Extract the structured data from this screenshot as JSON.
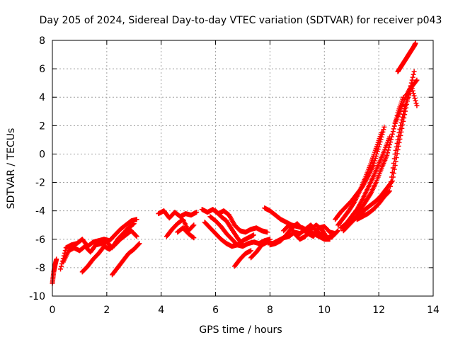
{
  "chart_data": {
    "type": "scatter",
    "title": "Day 205 of 2024, Sidereal Day-to-day VTEC variation (SDTVAR) for receiver p043",
    "xlabel": "GPS time / hours",
    "ylabel": "SDTVAR / TECUs",
    "xlim": [
      0,
      14
    ],
    "ylim": [
      -10,
      8
    ],
    "x_ticks": [
      0,
      2,
      4,
      6,
      8,
      10,
      12,
      14
    ],
    "y_ticks": [
      -10,
      -8,
      -6,
      -4,
      -2,
      0,
      2,
      4,
      6,
      8
    ],
    "grid": true,
    "marker": "plus",
    "point_color": "#ff0000",
    "series": [
      {
        "x": [
          0.0,
          0.05,
          0.1,
          0.15
        ],
        "y": [
          -9.1,
          -8.3,
          -7.8,
          -7.4
        ]
      },
      {
        "x": [
          0.3,
          0.5,
          0.7,
          0.9,
          1.1,
          1.3,
          1.5,
          1.7,
          1.9,
          2.1,
          2.3,
          2.5,
          2.7,
          2.9,
          3.1
        ],
        "y": [
          -8.1,
          -6.6,
          -6.4,
          -6.3,
          -6.0,
          -6.5,
          -6.2,
          -6.1,
          -6.0,
          -6.1,
          -5.7,
          -5.3,
          -5.0,
          -4.7,
          -4.6
        ]
      },
      {
        "x": [
          0.4,
          0.6,
          0.8,
          1.0,
          1.2,
          1.4,
          1.6,
          1.8,
          2.0,
          2.2,
          2.4,
          2.6,
          2.8,
          3.0
        ],
        "y": [
          -7.6,
          -6.8,
          -6.6,
          -6.8,
          -6.5,
          -6.9,
          -6.4,
          -6.3,
          -6.2,
          -6.6,
          -6.0,
          -5.6,
          -5.2,
          -4.9
        ]
      },
      {
        "x": [
          1.1,
          1.3,
          1.5,
          1.7,
          1.9,
          2.1,
          2.3,
          2.5,
          2.7,
          2.9,
          3.1
        ],
        "y": [
          -8.3,
          -7.9,
          -7.4,
          -7.0,
          -6.5,
          -6.7,
          -6.4,
          -6.0,
          -5.7,
          -5.4,
          -5.8
        ]
      },
      {
        "x": [
          2.2,
          2.4,
          2.6,
          2.8,
          3.0,
          3.2
        ],
        "y": [
          -8.5,
          -8.0,
          -7.5,
          -7.0,
          -6.7,
          -6.3
        ]
      },
      {
        "x": [
          3.9,
          4.1,
          4.3,
          4.5,
          4.7,
          4.9,
          5.1,
          5.3
        ],
        "y": [
          -4.2,
          -4.0,
          -4.5,
          -4.1,
          -4.4,
          -4.2,
          -4.3,
          -4.1
        ]
      },
      {
        "x": [
          4.2,
          4.4,
          4.6,
          4.8,
          5.0,
          5.2
        ],
        "y": [
          -5.8,
          -5.3,
          -4.9,
          -4.6,
          -5.4,
          -5.0
        ]
      },
      {
        "x": [
          4.6,
          4.8,
          5.0,
          5.2
        ],
        "y": [
          -5.5,
          -5.2,
          -5.6,
          -5.9
        ]
      },
      {
        "x": [
          5.5,
          5.7,
          5.9,
          6.1,
          6.3,
          6.5,
          6.7,
          6.9,
          7.1,
          7.3,
          7.5,
          7.7,
          7.9
        ],
        "y": [
          -3.9,
          -4.1,
          -3.9,
          -4.2,
          -4.0,
          -4.3,
          -5.0,
          -5.4,
          -5.5,
          -5.3,
          -5.2,
          -5.4,
          -5.5
        ]
      },
      {
        "x": [
          5.6,
          5.8,
          6.0,
          6.2,
          6.4,
          6.6,
          6.8,
          7.0,
          7.2,
          7.4
        ],
        "y": [
          -4.8,
          -5.2,
          -5.6,
          -6.0,
          -6.3,
          -6.5,
          -6.4,
          -6.1,
          -5.9,
          -5.7
        ]
      },
      {
        "x": [
          5.8,
          6.0,
          6.2,
          6.4,
          6.6,
          6.8,
          7.0,
          7.2,
          7.4,
          7.6,
          7.8,
          8.0
        ],
        "y": [
          -4.4,
          -4.7,
          -5.1,
          -5.6,
          -6.0,
          -6.4,
          -6.5,
          -6.3,
          -6.2,
          -6.3,
          -6.1,
          -6.0
        ]
      },
      {
        "x": [
          6.0,
          6.2,
          6.4,
          6.6,
          6.8,
          7.0
        ],
        "y": [
          -4.0,
          -4.4,
          -4.7,
          -5.3,
          -5.9,
          -6.4
        ]
      },
      {
        "x": [
          6.7,
          6.9,
          7.1,
          7.3
        ],
        "y": [
          -7.9,
          -7.4,
          -7.0,
          -6.8
        ]
      },
      {
        "x": [
          7.3,
          7.5,
          7.7,
          7.9,
          8.1,
          8.3,
          8.5,
          8.7,
          8.9,
          9.1,
          9.3,
          9.5,
          9.7,
          9.9,
          10.1
        ],
        "y": [
          -7.3,
          -6.9,
          -6.4,
          -6.2,
          -6.3,
          -6.1,
          -5.9,
          -5.8,
          -5.5,
          -5.6,
          -5.3,
          -5.0,
          -5.4,
          -5.7,
          -5.9
        ]
      },
      {
        "x": [
          7.8,
          8.0,
          8.2,
          8.4,
          8.6,
          8.8,
          9.0,
          9.2,
          9.4,
          9.6,
          9.8,
          10.0,
          10.2
        ],
        "y": [
          -3.8,
          -4.0,
          -4.3,
          -4.6,
          -4.8,
          -5.0,
          -5.1,
          -5.2,
          -5.4,
          -5.6,
          -5.8,
          -6.0,
          -6.0
        ]
      },
      {
        "x": [
          8.0,
          8.2,
          8.4,
          8.6,
          8.8,
          9.0,
          9.2,
          9.4,
          9.6,
          9.8,
          10.0,
          10.2,
          10.4
        ],
        "y": [
          -6.4,
          -6.3,
          -6.1,
          -5.7,
          -5.2,
          -4.9,
          -5.3,
          -5.6,
          -5.8,
          -5.2,
          -5.1,
          -5.5,
          -5.6
        ]
      },
      {
        "x": [
          8.5,
          8.7,
          8.9,
          9.1,
          9.3,
          9.5,
          9.7,
          9.9,
          10.1,
          10.3,
          10.5
        ],
        "y": [
          -5.4,
          -5.0,
          -5.6,
          -6.0,
          -5.8,
          -5.3,
          -5.0,
          -5.3,
          -5.9,
          -5.8,
          -5.4
        ]
      },
      {
        "x": [
          10.4,
          10.6,
          10.8,
          11.0,
          11.2,
          11.4,
          11.6,
          11.8,
          12.0,
          12.2
        ],
        "y": [
          -4.6,
          -4.1,
          -3.7,
          -3.3,
          -2.8,
          -2.3,
          -1.6,
          -0.8,
          0.5,
          1.9
        ]
      },
      {
        "x": [
          10.5,
          10.7,
          10.9,
          11.1,
          11.3,
          11.5,
          11.7,
          11.9,
          12.1
        ],
        "y": [
          -5.0,
          -4.5,
          -4.0,
          -3.4,
          -2.6,
          -1.7,
          -0.7,
          0.4,
          1.5
        ]
      },
      {
        "x": [
          10.6,
          10.8,
          11.0,
          11.2,
          11.4,
          11.6,
          11.8,
          12.0,
          12.2,
          12.4
        ],
        "y": [
          -5.2,
          -4.9,
          -4.4,
          -3.9,
          -3.2,
          -2.4,
          -1.6,
          -0.7,
          0.2,
          1.2
        ]
      },
      {
        "x": [
          10.7,
          10.9,
          11.1,
          11.3,
          11.5,
          11.7,
          11.9,
          12.1,
          12.3,
          12.5,
          12.7,
          12.9
        ],
        "y": [
          -5.4,
          -5.0,
          -4.6,
          -4.0,
          -3.4,
          -2.8,
          -2.0,
          -1.0,
          -0.1,
          1.4,
          2.9,
          4.0
        ]
      },
      {
        "x": [
          10.9,
          11.1,
          11.3,
          11.5,
          11.7,
          11.9,
          12.1,
          12.3,
          12.5,
          12.7,
          12.9,
          13.1,
          13.3
        ],
        "y": [
          -4.9,
          -4.6,
          -4.3,
          -3.9,
          -3.6,
          -3.3,
          -2.9,
          -2.4,
          -1.9,
          0.3,
          2.3,
          4.2,
          5.8
        ]
      },
      {
        "x": [
          11.2,
          11.4,
          11.6,
          11.8,
          12.0,
          12.2,
          12.4,
          12.6,
          12.8,
          13.0,
          13.2,
          13.4
        ],
        "y": [
          -4.6,
          -4.4,
          -4.2,
          -3.9,
          -3.5,
          -3.0,
          -2.6,
          0.0,
          2.0,
          3.6,
          4.7,
          5.2
        ]
      },
      {
        "x": [
          12.7,
          12.8,
          12.9,
          13.0,
          13.1,
          13.2,
          13.3,
          13.35
        ],
        "y": [
          5.8,
          6.1,
          6.4,
          6.7,
          7.0,
          7.3,
          7.6,
          7.8
        ]
      },
      {
        "x": [
          12.6,
          12.8,
          13.0,
          13.2,
          13.4
        ],
        "y": [
          2.2,
          3.1,
          4.1,
          4.8,
          3.4
        ]
      }
    ]
  }
}
